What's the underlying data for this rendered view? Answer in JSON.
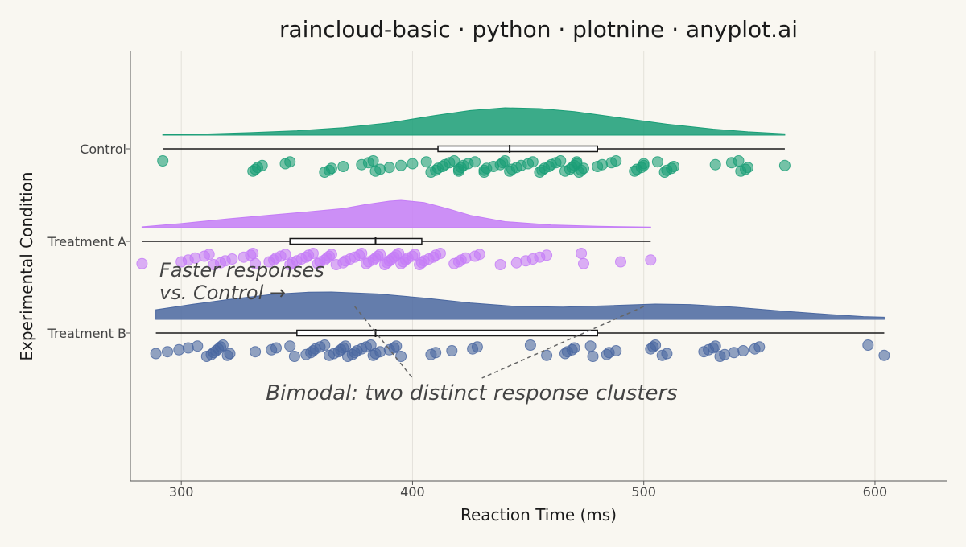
{
  "chart_data": {
    "type": "raincloud",
    "title": "raincloud-basic · python · plotnine · anyplot.ai",
    "xlabel": "Reaction Time (ms)",
    "ylabel": "Experimental Condition",
    "xlim": [
      278,
      631
    ],
    "xticks": [
      300,
      400,
      500,
      600
    ],
    "grid": true,
    "legend": "none",
    "background": "#F9F7F1",
    "series": [
      {
        "name": "Control",
        "color": "#1A9E77",
        "range": [
          292,
          561
        ],
        "box": {
          "q1": 411,
          "median": 442,
          "q3": 480
        },
        "density": [
          [
            292,
            0.02
          ],
          [
            310,
            0.04
          ],
          [
            330,
            0.09
          ],
          [
            350,
            0.16
          ],
          [
            370,
            0.27
          ],
          [
            390,
            0.45
          ],
          [
            410,
            0.72
          ],
          [
            425,
            0.9
          ],
          [
            440,
            1.0
          ],
          [
            455,
            0.97
          ],
          [
            470,
            0.86
          ],
          [
            490,
            0.63
          ],
          [
            510,
            0.4
          ],
          [
            530,
            0.22
          ],
          [
            545,
            0.12
          ],
          [
            561,
            0.05
          ]
        ],
        "points": [
          292,
          331,
          332,
          333,
          335,
          345,
          347,
          362,
          364,
          365,
          370,
          378,
          381,
          383,
          384,
          386,
          390,
          395,
          400,
          406,
          408,
          410,
          411,
          413,
          414,
          416,
          418,
          420,
          420,
          421,
          422,
          424,
          427,
          431,
          431,
          432,
          435,
          438,
          439,
          440,
          442,
          443,
          445,
          447,
          450,
          452,
          455,
          456,
          457,
          459,
          460,
          462,
          464,
          466,
          468,
          469,
          470,
          471,
          471,
          472,
          473,
          474,
          480,
          482,
          486,
          488,
          496,
          497,
          499,
          500,
          500,
          506,
          509,
          510,
          512,
          513,
          531,
          538,
          541,
          542,
          544,
          545,
          561
        ]
      },
      {
        "name": "Treatment A",
        "color": "#C47CF7",
        "range": [
          283,
          503
        ],
        "box": {
          "q1": 347,
          "median": 384,
          "q3": 404
        },
        "density": [
          [
            283,
            0.03
          ],
          [
            300,
            0.15
          ],
          [
            320,
            0.32
          ],
          [
            340,
            0.47
          ],
          [
            355,
            0.58
          ],
          [
            370,
            0.7
          ],
          [
            380,
            0.85
          ],
          [
            390,
            0.97
          ],
          [
            395,
            1.0
          ],
          [
            405,
            0.92
          ],
          [
            415,
            0.7
          ],
          [
            425,
            0.45
          ],
          [
            440,
            0.22
          ],
          [
            460,
            0.1
          ],
          [
            480,
            0.05
          ],
          [
            503,
            0.02
          ]
        ],
        "points": [
          283,
          300,
          303,
          306,
          310,
          312,
          314,
          317,
          319,
          322,
          327,
          330,
          331,
          332,
          338,
          340,
          341,
          343,
          345,
          347,
          348,
          350,
          352,
          354,
          355,
          357,
          359,
          360,
          362,
          363,
          364,
          365,
          367,
          370,
          371,
          373,
          375,
          377,
          378,
          380,
          381,
          383,
          384,
          385,
          386,
          388,
          389,
          390,
          391,
          392,
          393,
          394,
          395,
          396,
          397,
          398,
          400,
          401,
          403,
          404,
          405,
          407,
          409,
          410,
          412,
          418,
          420,
          421,
          423,
          427,
          429,
          438,
          445,
          449,
          452,
          455,
          458,
          473,
          474,
          490,
          503
        ]
      },
      {
        "name": "Treatment B",
        "color": "#4A67A0",
        "range": [
          289,
          604
        ],
        "box": {
          "q1": 350,
          "median": 384,
          "q3": 480
        },
        "density": [
          [
            289,
            0.35
          ],
          [
            305,
            0.55
          ],
          [
            320,
            0.72
          ],
          [
            340,
            0.92
          ],
          [
            355,
            0.99
          ],
          [
            365,
            1.0
          ],
          [
            385,
            0.93
          ],
          [
            405,
            0.78
          ],
          [
            425,
            0.6
          ],
          [
            445,
            0.47
          ],
          [
            465,
            0.45
          ],
          [
            485,
            0.5
          ],
          [
            505,
            0.56
          ],
          [
            520,
            0.54
          ],
          [
            540,
            0.44
          ],
          [
            560,
            0.3
          ],
          [
            580,
            0.18
          ],
          [
            595,
            0.1
          ],
          [
            604,
            0.08
          ]
        ],
        "points": [
          289,
          294,
          299,
          303,
          307,
          311,
          313,
          314,
          315,
          316,
          317,
          318,
          320,
          321,
          332,
          339,
          341,
          347,
          349,
          354,
          356,
          357,
          358,
          360,
          362,
          364,
          366,
          368,
          369,
          370,
          371,
          372,
          374,
          375,
          376,
          378,
          380,
          382,
          383,
          384,
          386,
          390,
          392,
          393,
          395,
          408,
          410,
          417,
          426,
          428,
          451,
          458,
          466,
          467,
          469,
          470,
          477,
          478,
          484,
          485,
          488,
          503,
          504,
          505,
          508,
          510,
          526,
          528,
          530,
          531,
          533,
          535,
          539,
          543,
          548,
          550,
          597,
          604
        ]
      }
    ],
    "annotations": [
      {
        "text_lines": [
          "Faster responses",
          "vs. Control →"
        ]
      },
      {
        "text": "Bimodal: two distinct response clusters"
      }
    ]
  }
}
